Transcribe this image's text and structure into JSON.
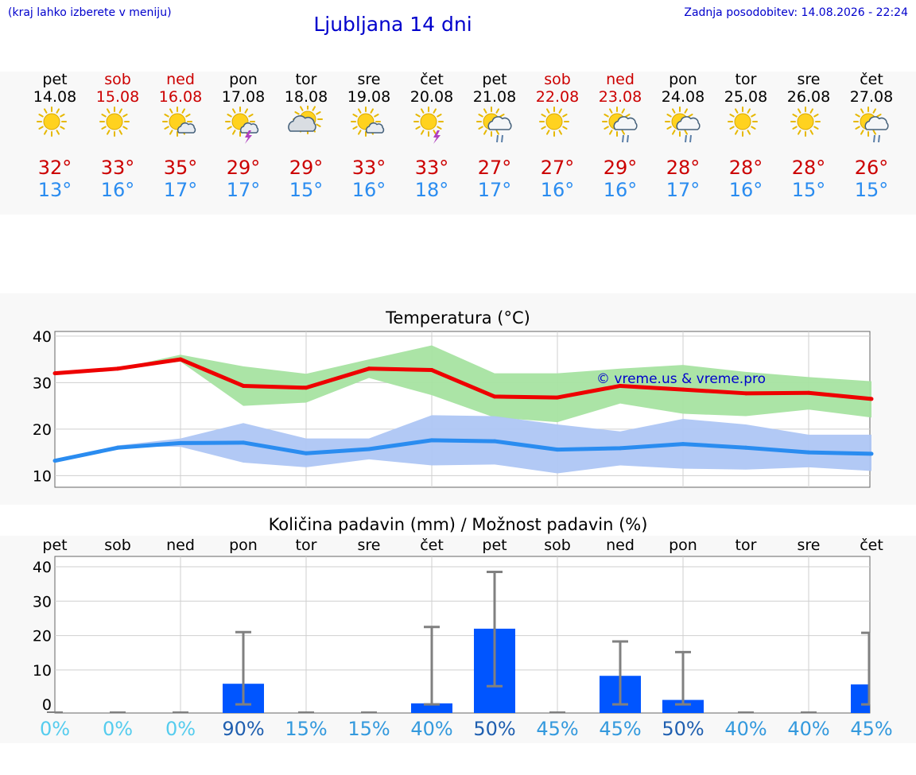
{
  "header": {
    "hint": "(kraj lahko izberete v meniju)",
    "title": "Ljubljana 14 dni",
    "updated": "Zadnja posodobitev: 14.08.2026 - 22:24"
  },
  "forecast": [
    {
      "day": "pet",
      "date": "14.08",
      "weekend": false,
      "icon": "sun-icon",
      "tmax": "32°",
      "tmin": "13°"
    },
    {
      "day": "sob",
      "date": "15.08",
      "weekend": true,
      "icon": "sun-icon",
      "tmax": "33°",
      "tmin": "16°"
    },
    {
      "day": "ned",
      "date": "16.08",
      "weekend": true,
      "icon": "sun-small-cloud-icon",
      "tmax": "35°",
      "tmin": "17°"
    },
    {
      "day": "pon",
      "date": "17.08",
      "weekend": false,
      "icon": "sun-cloud-thunder-icon",
      "tmax": "29°",
      "tmin": "17°"
    },
    {
      "day": "tor",
      "date": "18.08",
      "weekend": false,
      "icon": "sun-big-cloud-icon",
      "tmax": "29°",
      "tmin": "15°"
    },
    {
      "day": "sre",
      "date": "19.08",
      "weekend": false,
      "icon": "sun-small-cloud-icon",
      "tmax": "33°",
      "tmin": "16°"
    },
    {
      "day": "čet",
      "date": "20.08",
      "weekend": false,
      "icon": "sun-thunder-icon",
      "tmax": "33°",
      "tmin": "18°"
    },
    {
      "day": "pet",
      "date": "21.08",
      "weekend": false,
      "icon": "sun-cloud-rain-icon",
      "tmax": "27°",
      "tmin": "17°"
    },
    {
      "day": "sob",
      "date": "22.08",
      "weekend": true,
      "icon": "sun-icon",
      "tmax": "27°",
      "tmin": "16°"
    },
    {
      "day": "ned",
      "date": "23.08",
      "weekend": true,
      "icon": "sun-cloud-rain-icon",
      "tmax": "29°",
      "tmin": "16°"
    },
    {
      "day": "pon",
      "date": "24.08",
      "weekend": false,
      "icon": "sun-cloud-rain-icon",
      "tmax": "28°",
      "tmin": "17°"
    },
    {
      "day": "tor",
      "date": "25.08",
      "weekend": false,
      "icon": "sun-icon",
      "tmax": "28°",
      "tmin": "16°"
    },
    {
      "day": "sre",
      "date": "26.08",
      "weekend": false,
      "icon": "sun-icon",
      "tmax": "28°",
      "tmin": "15°"
    },
    {
      "day": "čet",
      "date": "27.08",
      "weekend": false,
      "icon": "sun-cloud-rain-icon",
      "tmax": "26°",
      "tmin": "15°"
    }
  ],
  "watermark": "© vreme.us & vreme.pro",
  "colors": {
    "max_line": "#ee0000",
    "max_band": "#a6e3a1",
    "min_line": "#2a8cf0",
    "min_band": "#aec6f4",
    "bar": "#0055ff",
    "whisker": "#808080",
    "weekend_text": "#cc0000",
    "title_blue": "#0000cc"
  },
  "chart_data": [
    {
      "type": "line",
      "title": "Temperatura (°C)",
      "ylim": [
        7.5,
        41
      ],
      "yticks": [
        10,
        20,
        30,
        40
      ],
      "grid": true,
      "x": [
        0,
        1,
        2,
        3,
        4,
        5,
        6,
        7,
        8,
        9,
        10,
        11,
        12,
        13
      ],
      "series": [
        {
          "values": [
            32,
            33,
            35,
            29.3,
            28.9,
            33,
            32.7,
            27,
            26.8,
            29.3,
            28.5,
            27.7,
            27.8,
            26.5
          ],
          "band_low": [
            32,
            33,
            34.5,
            25,
            25.7,
            31,
            27.3,
            22.5,
            21.5,
            25.5,
            23.3,
            22.8,
            24.2,
            22.5
          ],
          "band_high": [
            32,
            33,
            36,
            33.5,
            31.9,
            35,
            38,
            32,
            32,
            33,
            33.8,
            32.3,
            31.2,
            30.3
          ]
        },
        {
          "values": [
            13.2,
            16,
            17,
            17.1,
            14.8,
            15.7,
            17.6,
            17.4,
            15.6,
            15.9,
            16.8,
            16,
            15,
            14.7
          ],
          "band_low": [
            13,
            16.3,
            16.2,
            12.8,
            11.8,
            13.5,
            12.2,
            12.4,
            10.5,
            12.2,
            11.5,
            11.3,
            11.8,
            11
          ],
          "band_high": [
            13.4,
            16.5,
            18,
            21.3,
            18,
            18,
            23,
            22.8,
            21,
            19.5,
            22.2,
            21,
            18.8,
            18.8
          ]
        }
      ]
    },
    {
      "type": "bar",
      "title": "Količina padavin (mm) / Možnost padavin (%)",
      "ylim": [
        -2.5,
        43
      ],
      "yticks": [
        0,
        10,
        20,
        30,
        40
      ],
      "grid": true,
      "categories": [
        "pet",
        "sob",
        "ned",
        "pon",
        "tor",
        "sre",
        "čet",
        "pet",
        "sob",
        "ned",
        "pon",
        "tor",
        "sre",
        "čet"
      ],
      "values": [
        0,
        0,
        0,
        6,
        0,
        0,
        0.3,
        22,
        0,
        8.3,
        1.3,
        0,
        0,
        5.8
      ],
      "err_low": [
        0,
        0,
        0,
        0,
        0,
        0,
        0,
        5.3,
        0,
        0,
        0,
        0,
        0,
        0
      ],
      "err_high": [
        0,
        0,
        0,
        21,
        0,
        0,
        22.5,
        38.5,
        0,
        18.3,
        15.2,
        0,
        0,
        20.8
      ],
      "chance": [
        "0%",
        "0%",
        "0%",
        "90%",
        "15%",
        "15%",
        "40%",
        "50%",
        "45%",
        "45%",
        "50%",
        "40%",
        "40%",
        "45%"
      ]
    }
  ]
}
